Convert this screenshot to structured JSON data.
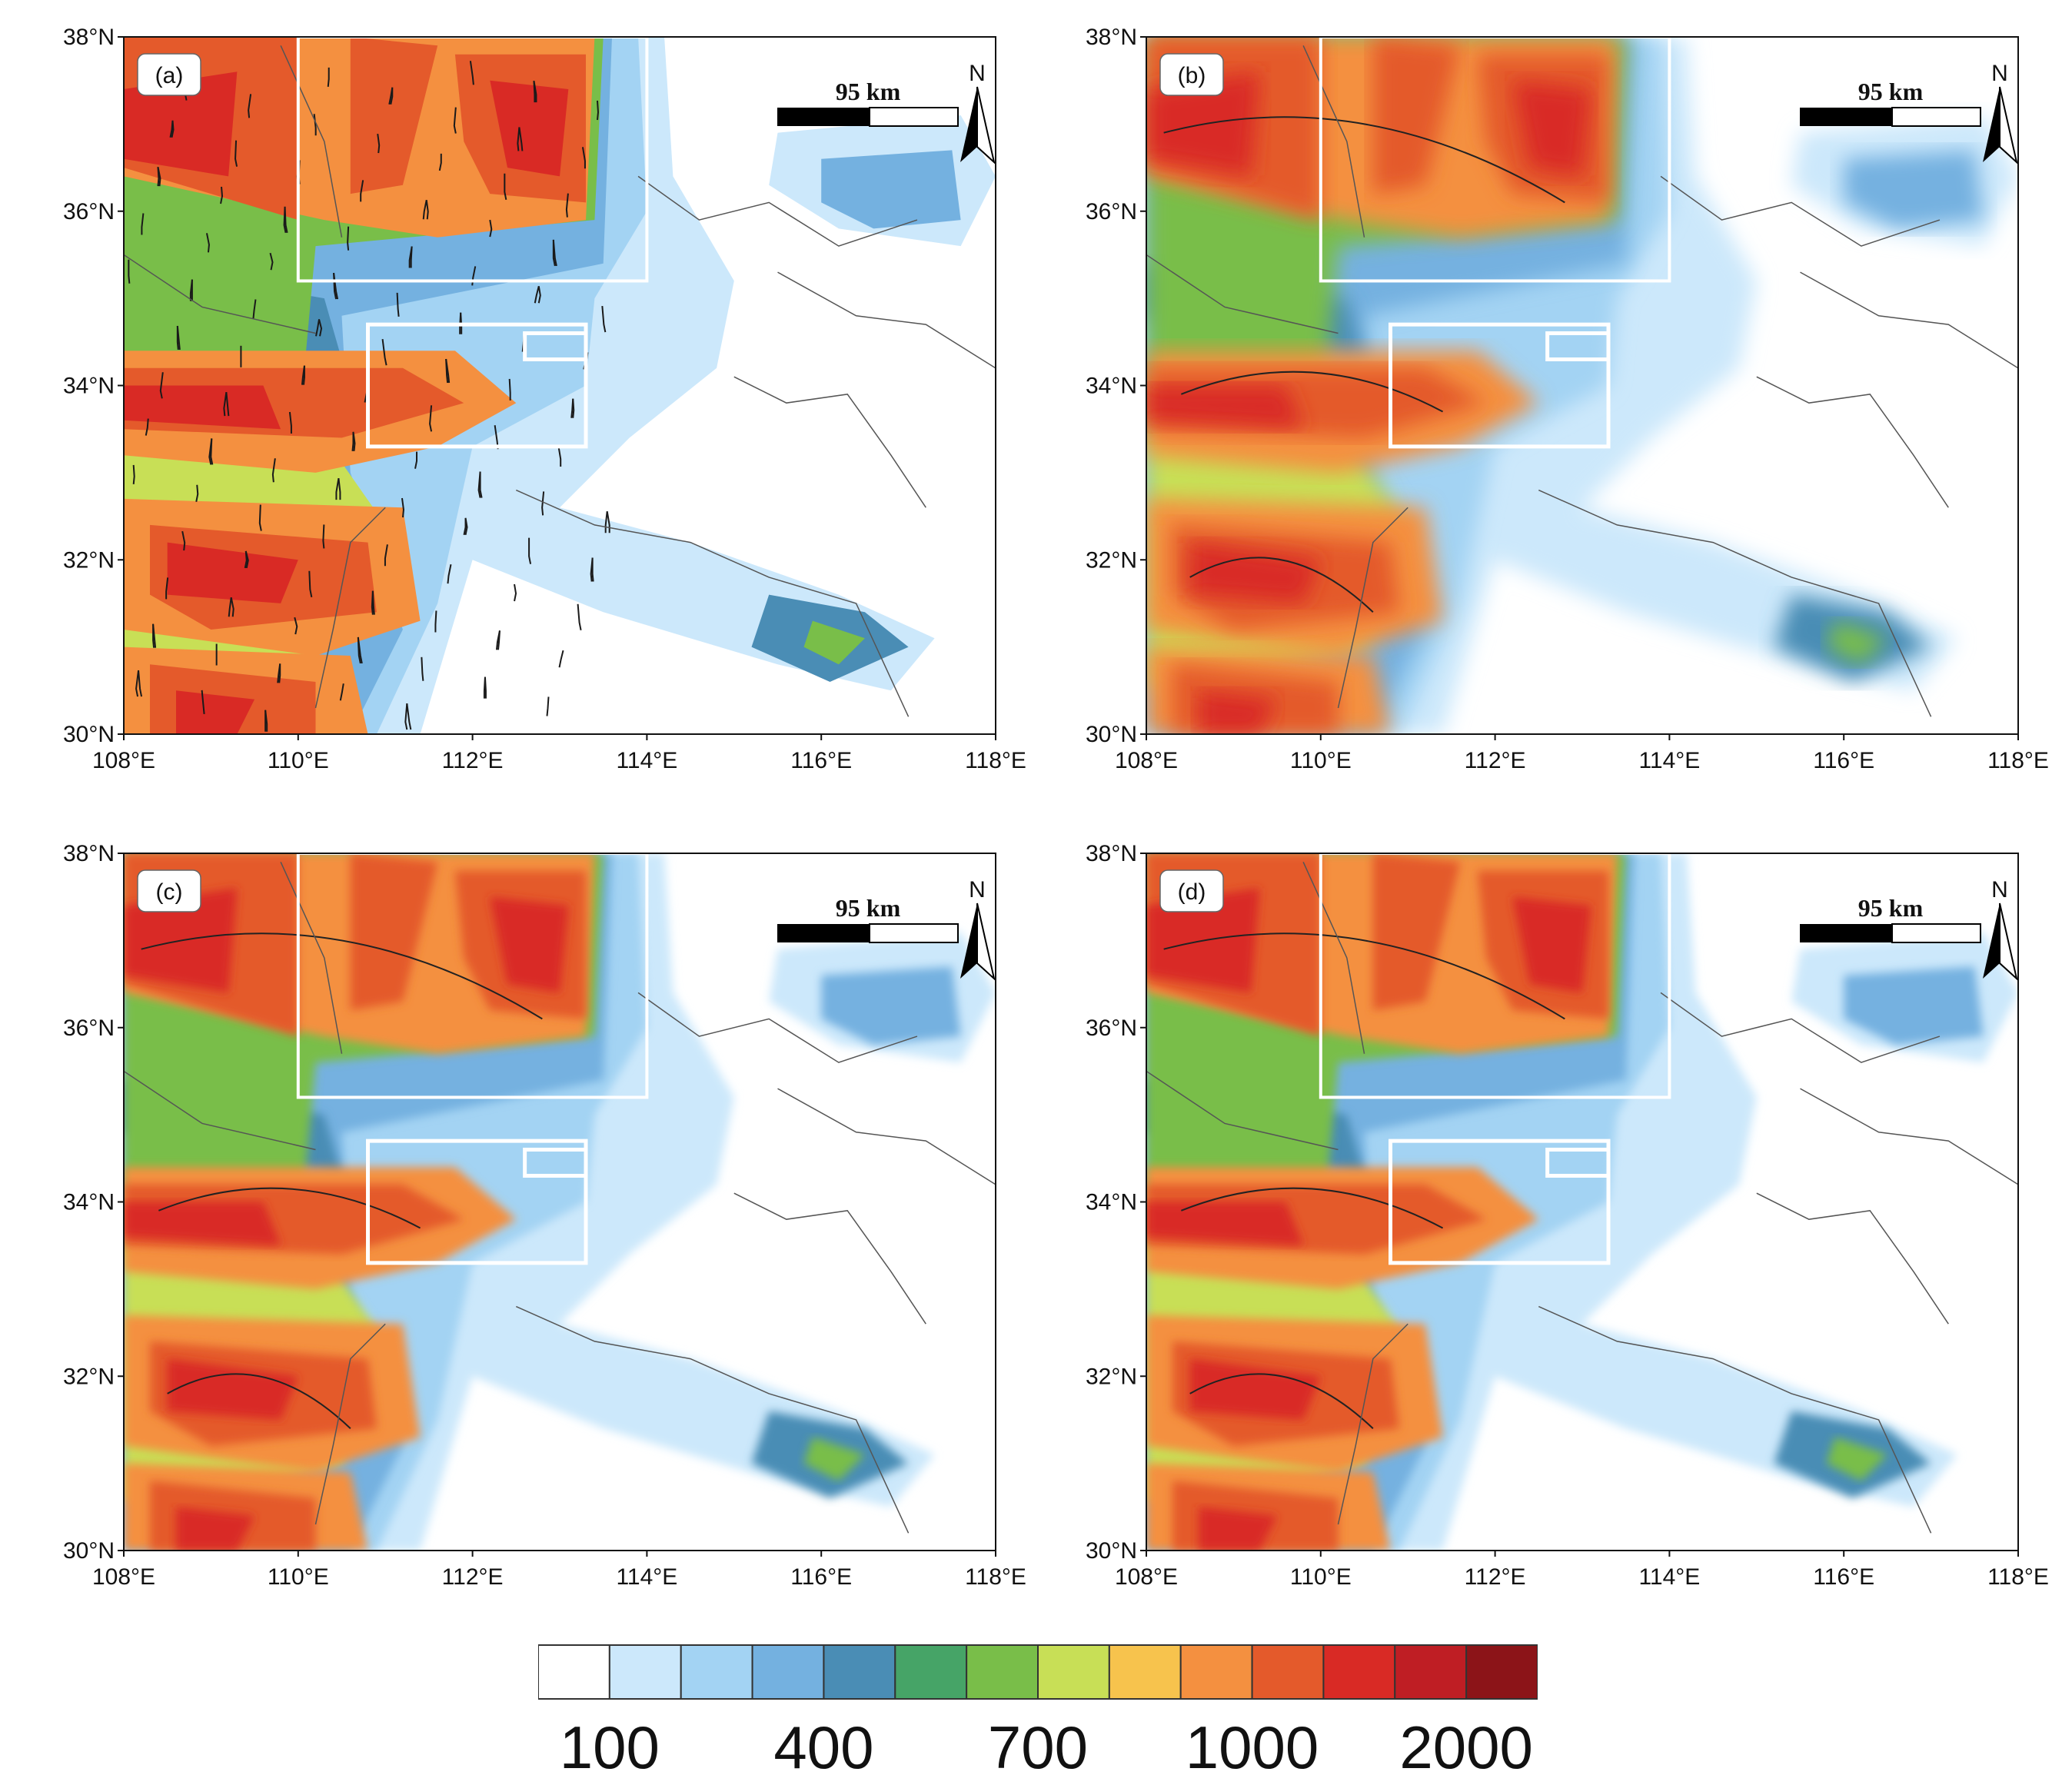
{
  "panels": [
    {
      "id": "a",
      "label": "(a)",
      "style": "detailed"
    },
    {
      "id": "b",
      "label": "(b)",
      "style": "smooth"
    },
    {
      "id": "c",
      "label": "(c)",
      "style": "medium"
    },
    {
      "id": "d",
      "label": "(d)",
      "style": "medium"
    }
  ],
  "axes": {
    "lat_ticks": [
      "38°N",
      "36°N",
      "34°N",
      "32°N",
      "30°N"
    ],
    "lon_ticks": [
      "108°E",
      "110°E",
      "112°E",
      "114°E",
      "116°E",
      "118°E"
    ]
  },
  "scale_bar": {
    "label": "95 km"
  },
  "north_arrow": {
    "label": "N"
  },
  "colorbar": {
    "colors": [
      "#ffffff",
      "#cce8fb",
      "#a3d3f3",
      "#74b1e0",
      "#4a8db5",
      "#46a467",
      "#79be49",
      "#c8df56",
      "#f7c34d",
      "#f49040",
      "#e45a2b",
      "#d92a25",
      "#bf1e24",
      "#8c1418"
    ],
    "labels": [
      "100",
      "400",
      "700",
      "1000",
      "2000"
    ]
  }
}
